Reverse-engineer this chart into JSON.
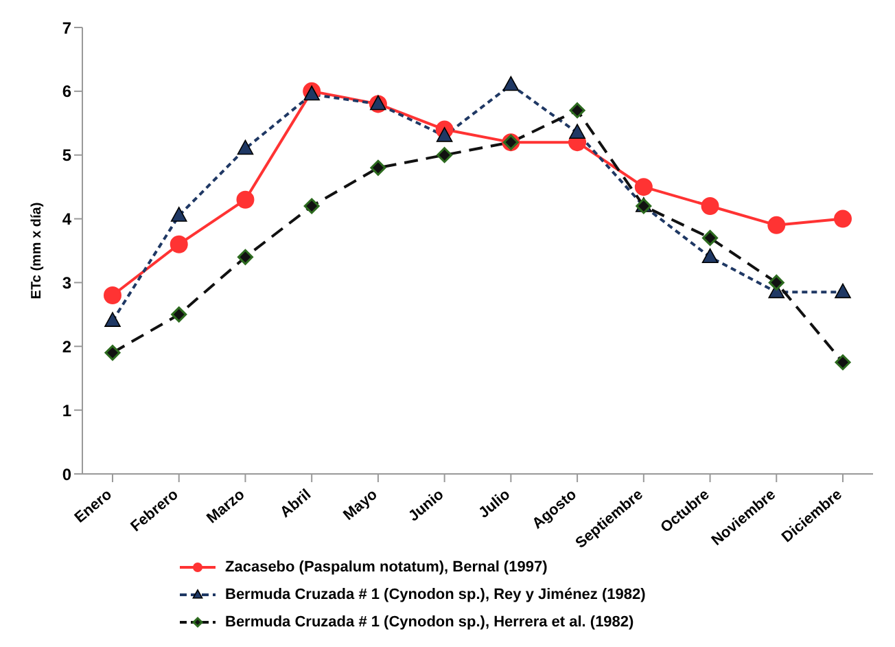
{
  "chart_data": {
    "type": "line",
    "ylabel": "ETc (mm x día)",
    "categories": [
      "Enero",
      "Febrero",
      "Marzo",
      "Abril",
      "Mayo",
      "Junio",
      "Julio",
      "Agosto",
      "Septiembre",
      "Octubre",
      "Noviembre",
      "Diciembre"
    ],
    "series": [
      {
        "name": "Zacasebo (Paspalum notatum),  Bernal (1997)",
        "color": "#ff3333",
        "marker": "circle",
        "line_style": "solid",
        "values": [
          2.8,
          3.6,
          4.3,
          6.0,
          5.8,
          5.4,
          5.2,
          5.2,
          4.5,
          4.2,
          3.9,
          4.0
        ]
      },
      {
        "name": "Bermuda Cruzada # 1  (Cynodon sp.),  Rey y Jiménez (1982)",
        "color": "#1f3864",
        "marker": "triangle",
        "line_style": "dotted",
        "values": [
          2.4,
          4.05,
          5.1,
          5.95,
          5.8,
          5.3,
          6.1,
          5.35,
          4.2,
          3.4,
          2.85,
          2.85
        ]
      },
      {
        "name": "Bermuda Cruzada # 1 (Cynodon sp.),  Herrera et al. (1982)",
        "color": "#111111",
        "marker": "diamond",
        "line_style": "dashed",
        "values": [
          1.9,
          2.5,
          3.4,
          4.2,
          4.8,
          5.0,
          5.2,
          5.7,
          4.2,
          3.7,
          3.0,
          1.75
        ]
      }
    ],
    "ylim": [
      0,
      7
    ],
    "yticks": [
      0,
      1,
      2,
      3,
      4,
      5,
      6,
      7
    ],
    "grid": false,
    "legend": "bottom"
  }
}
